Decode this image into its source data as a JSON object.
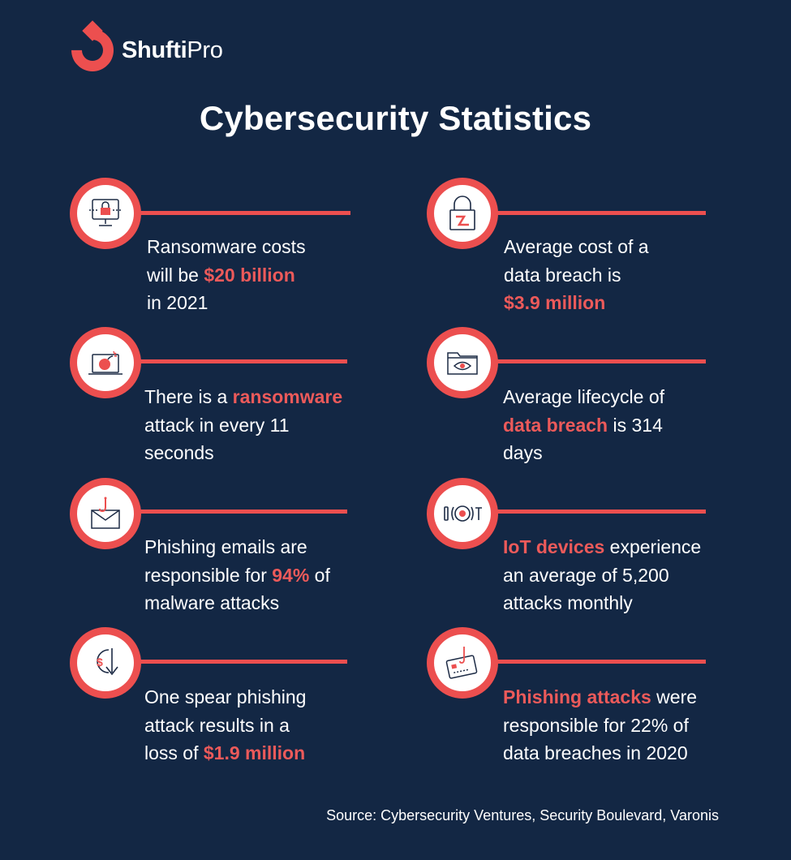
{
  "brand": {
    "name_bold": "Shufti",
    "name_light": "Pro"
  },
  "title": "Cybersecurity Statistics",
  "colors": {
    "background": "#132744",
    "accent": "#ec4f4f",
    "text": "#ffffff"
  },
  "stats": [
    {
      "icon": "locked-monitor-icon",
      "lines": [
        [
          "Ransomware costs"
        ],
        [
          "will be ",
          {
            "hl": "$20 billion"
          }
        ],
        [
          "in 2021"
        ]
      ]
    },
    {
      "icon": "padlock-icon",
      "lines": [
        [
          "Average cost of a"
        ],
        [
          "data breach is"
        ],
        [
          {
            "hl": "$3.9 million"
          }
        ]
      ]
    },
    {
      "icon": "laptop-bomb-icon",
      "lines": [
        [
          "There is a ",
          {
            "hl": "ransomware"
          }
        ],
        [
          "attack in every 11"
        ],
        [
          "seconds"
        ]
      ]
    },
    {
      "icon": "folder-eye-icon",
      "lines": [
        [
          "Average lifecycle of"
        ],
        [
          {
            "hl": "data breach"
          },
          " is 314"
        ],
        [
          "days"
        ]
      ]
    },
    {
      "icon": "phishing-envelope-icon",
      "lines": [
        [
          "Phishing emails are"
        ],
        [
          "responsible for ",
          {
            "hl": "94%"
          },
          " of"
        ],
        [
          "malware attacks"
        ]
      ]
    },
    {
      "icon": "iot-device-icon",
      "lines": [
        [
          {
            "hl": "IoT devices"
          },
          " experience"
        ],
        [
          "an average of 5,200"
        ],
        [
          "attacks monthly"
        ]
      ]
    },
    {
      "icon": "dollar-loss-icon",
      "lines": [
        [
          "One spear phishing"
        ],
        [
          "attack results in a"
        ],
        [
          "loss of ",
          {
            "hl": "$1.9 million"
          }
        ]
      ]
    },
    {
      "icon": "phished-card-icon",
      "lines": [
        [
          {
            "hl": "Phishing attacks"
          },
          " were"
        ],
        [
          "responsible for 22% of"
        ],
        [
          "data breaches in 2020"
        ]
      ]
    }
  ],
  "source": "Source: Cybersecurity Ventures, Security Boulevard, Varonis"
}
